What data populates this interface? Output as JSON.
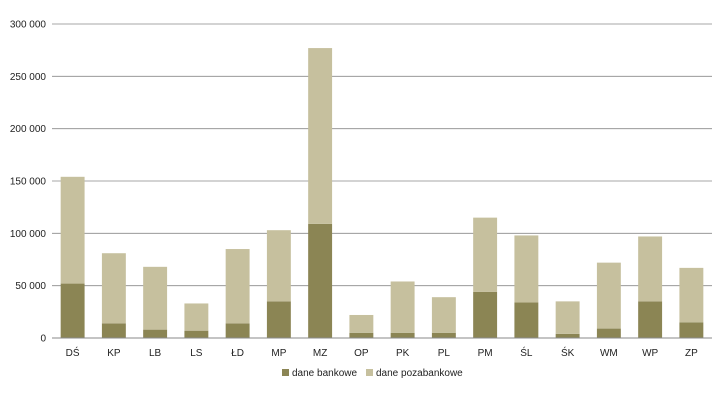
{
  "chart_data": {
    "type": "bar",
    "stacked": true,
    "categories": [
      "DŚ",
      "KP",
      "LB",
      "LS",
      "ŁD",
      "MP",
      "MZ",
      "OP",
      "PK",
      "PL",
      "PM",
      "ŚL",
      "ŚK",
      "WM",
      "WP",
      "ZP"
    ],
    "series": [
      {
        "name": "dane bankowe",
        "color": "#8b8554",
        "values": [
          52000,
          14000,
          8000,
          7000,
          14000,
          35000,
          109000,
          5000,
          5000,
          5000,
          44000,
          34000,
          4000,
          9000,
          35000,
          15000
        ]
      },
      {
        "name": "dane pozabankowe",
        "color": "#c6c09e",
        "values": [
          102000,
          67000,
          60000,
          26000,
          71000,
          68000,
          168000,
          17000,
          49000,
          34000,
          71000,
          64000,
          31000,
          63000,
          62000,
          52000
        ]
      }
    ],
    "yticks": [
      "0",
      "50 000",
      "100 000",
      "150 000",
      "200 000",
      "250 000",
      "300 000"
    ],
    "ylim": [
      0,
      300000
    ],
    "grid": true,
    "legend": "bottom-center"
  }
}
